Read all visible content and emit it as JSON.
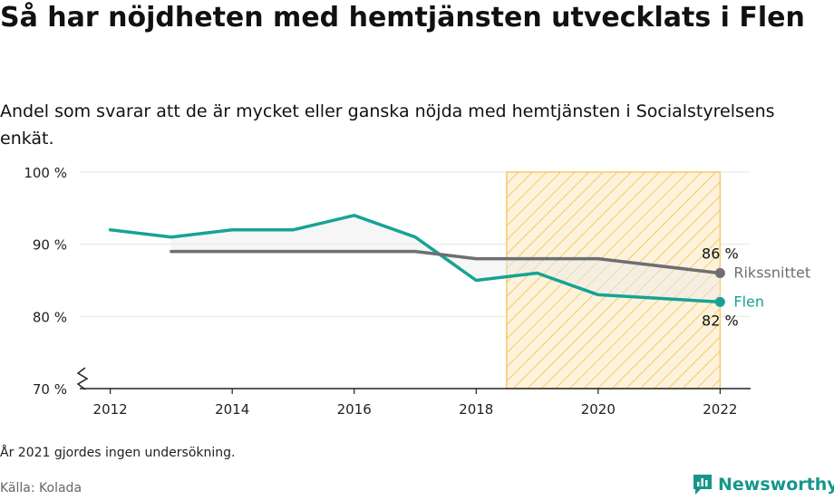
{
  "header": {
    "title": "Så har nöjdheten med hemtjänsten utvecklats i Flen",
    "subtitle": "Andel som svarar att de är mycket eller ganska nöjda med hemtjänsten i Socialstyrelsens enkät."
  },
  "footer": {
    "note": "År 2021 gjordes ingen undersökning.",
    "source": "Källa: Kolada",
    "brand": "Newsworthy"
  },
  "colors": {
    "flen": "#16a394",
    "riket": "#6e6e73",
    "hatch": "#f5c96a",
    "hatch_bg": "#fdf3dc"
  },
  "chart_data": {
    "type": "line",
    "x": [
      2012,
      2013,
      2014,
      2015,
      2016,
      2017,
      2018,
      2019,
      2020,
      2022
    ],
    "series": [
      {
        "name": "Flen",
        "values": [
          92,
          91,
          92,
          92,
          94,
          91,
          85,
          86,
          83,
          82
        ]
      },
      {
        "name": "Rikssnittet",
        "values": [
          null,
          89,
          89,
          89,
          89,
          89,
          88,
          88,
          88,
          86
        ]
      }
    ],
    "end_labels": {
      "Flen": "82 %",
      "Rikssnittet": "86 %"
    },
    "xticks": [
      "2012",
      "2014",
      "2016",
      "2018",
      "2020",
      "2022"
    ],
    "yticks": [
      "70 %",
      "80 %",
      "90 %",
      "100 %"
    ],
    "ylim": [
      70,
      100
    ],
    "xlim": [
      2011.5,
      2022.5
    ],
    "y_axis_break": true,
    "highlight_range": [
      2018.5,
      2022
    ],
    "grid": true
  }
}
